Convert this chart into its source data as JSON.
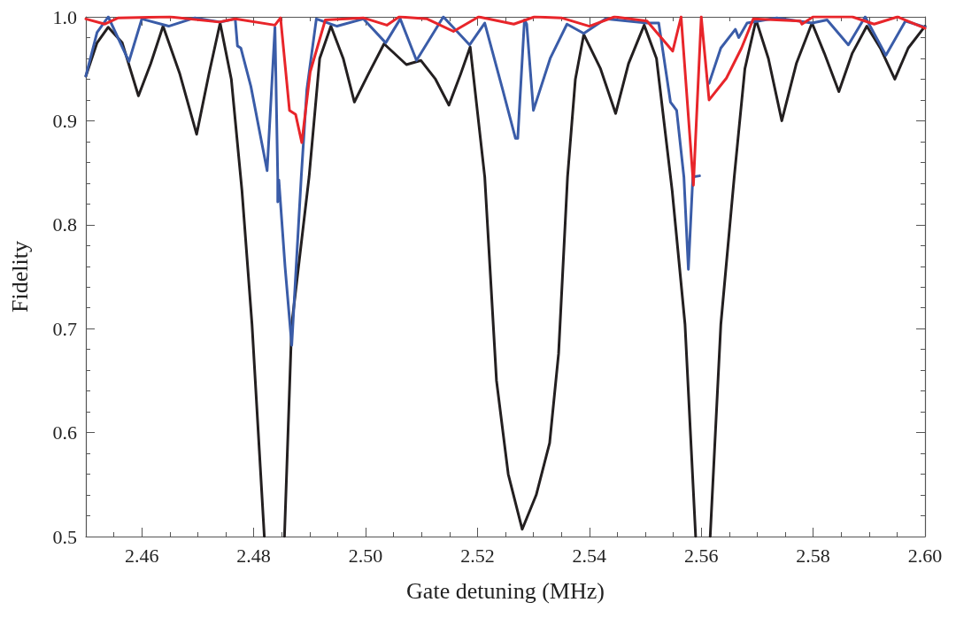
{
  "chart_data": {
    "type": "line",
    "xlabel": "Gate detuning (MHz)",
    "ylabel": "Fidelity",
    "xlim": [
      2.45,
      2.6
    ],
    "ylim": [
      0.5,
      1.0
    ],
    "xticks": [
      {
        "value": 2.455,
        "label": null
      },
      2.46,
      {
        "value": 2.465,
        "label": null
      },
      {
        "value": 2.47,
        "label": null
      },
      {
        "value": 2.475,
        "label": null
      },
      2.48,
      {
        "value": 2.485,
        "label": null
      },
      {
        "value": 2.49,
        "label": null
      },
      {
        "value": 2.495,
        "label": null
      },
      {
        "value": 2.5,
        "label": "2.50"
      },
      {
        "value": 2.505,
        "label": null
      },
      {
        "value": 2.51,
        "label": null
      },
      {
        "value": 2.515,
        "label": null
      },
      2.52,
      {
        "value": 2.525,
        "label": null
      },
      {
        "value": 2.53,
        "label": null
      },
      {
        "value": 2.535,
        "label": null
      },
      2.54,
      {
        "value": 2.545,
        "label": null
      },
      {
        "value": 2.55,
        "label": null
      },
      {
        "value": 2.555,
        "label": null
      },
      2.56,
      {
        "value": 2.565,
        "label": null
      },
      {
        "value": 2.57,
        "label": null
      },
      {
        "value": 2.575,
        "label": null
      },
      2.58,
      {
        "value": 2.585,
        "label": null
      },
      {
        "value": 2.59,
        "label": null
      },
      {
        "value": 2.595,
        "label": null
      },
      {
        "value": 2.6,
        "label": "2.60"
      }
    ],
    "yticks": [
      0.5,
      {
        "value": 0.52,
        "label": null
      },
      {
        "value": 0.54,
        "label": null
      },
      {
        "value": 0.56,
        "label": null
      },
      {
        "value": 0.58,
        "label": null
      },
      0.6,
      {
        "value": 0.62,
        "label": null
      },
      {
        "value": 0.64,
        "label": null
      },
      {
        "value": 0.66,
        "label": null
      },
      {
        "value": 0.68,
        "label": null
      },
      0.7,
      {
        "value": 0.72,
        "label": null
      },
      {
        "value": 0.74,
        "label": null
      },
      {
        "value": 0.76,
        "label": null
      },
      {
        "value": 0.78,
        "label": null
      },
      0.8,
      {
        "value": 0.82,
        "label": null
      },
      {
        "value": 0.84,
        "label": null
      },
      {
        "value": 0.86,
        "label": null
      },
      {
        "value": 0.88,
        "label": null
      },
      0.9,
      {
        "value": 0.92,
        "label": null
      },
      {
        "value": 0.94,
        "label": null
      },
      {
        "value": 0.96,
        "label": null
      },
      {
        "value": 0.98,
        "label": null
      },
      {
        "value": 1.0,
        "label": "1.0"
      }
    ],
    "marker": "none",
    "line_style": "solid",
    "series": [
      {
        "color": "#231f20",
        "x": [
          2.45,
          2.452,
          2.454,
          2.4565,
          2.4594,
          2.4616,
          2.4638,
          2.4668,
          2.4698,
          2.472,
          2.474,
          2.476,
          2.4779,
          2.4797,
          2.4819,
          2.4837,
          2.4855,
          2.4868,
          2.4899,
          2.4918,
          2.4938,
          2.496,
          2.498,
          2.5005,
          2.5033,
          2.5073,
          2.5099,
          2.5125,
          2.5149,
          2.517,
          2.5187,
          2.5213,
          2.5234,
          2.5255,
          2.528,
          2.5305,
          2.5329,
          2.5345,
          2.5361,
          2.5375,
          2.539,
          2.542,
          2.5447,
          2.547,
          2.5498,
          2.552,
          2.5548,
          2.5571,
          2.559,
          2.5603,
          2.5616,
          2.5635,
          2.5659,
          2.5678,
          2.5698,
          2.572,
          2.5744,
          2.577,
          2.5798,
          2.582,
          2.5846,
          2.587,
          2.5896,
          2.592,
          2.5946,
          2.597,
          2.6
        ],
        "values": [
          0.943,
          0.975,
          0.99,
          0.975,
          0.924,
          0.955,
          0.991,
          0.945,
          0.887,
          0.945,
          0.994,
          0.94,
          0.833,
          0.704,
          0.5,
          null,
          0.5,
          0.704,
          0.846,
          0.96,
          0.991,
          0.96,
          0.918,
          0.945,
          0.974,
          0.954,
          0.958,
          0.94,
          0.915,
          0.945,
          0.971,
          0.846,
          0.65,
          0.56,
          0.507,
          0.54,
          0.59,
          0.676,
          0.846,
          0.94,
          0.983,
          0.95,
          0.907,
          0.955,
          0.992,
          0.96,
          0.833,
          0.704,
          0.5,
          null,
          0.5,
          0.704,
          0.846,
          0.95,
          0.997,
          0.96,
          0.9,
          0.955,
          0.994,
          0.965,
          0.928,
          0.965,
          0.991,
          0.97,
          0.94,
          0.97,
          0.991
        ]
      },
      {
        "color": "#3a5ca8",
        "x": [
          2.45,
          2.452,
          2.454,
          2.4577,
          2.46,
          2.4648,
          2.4695,
          2.474,
          2.4767,
          2.4771,
          2.4777,
          2.4795,
          2.4824,
          2.4838,
          2.4843,
          2.4843,
          2.4845,
          2.4856,
          2.4868,
          2.4877,
          2.4885,
          2.4895,
          2.4912,
          2.4949,
          2.4996,
          2.5036,
          2.5062,
          2.5091,
          2.5139,
          2.5186,
          2.5213,
          2.5245,
          2.5268,
          2.5272,
          2.5284,
          2.5288,
          2.53,
          2.533,
          2.536,
          2.539,
          2.5429,
          2.5503,
          2.5524,
          2.5545,
          2.5556,
          2.5569,
          2.5577,
          2.5585,
          2.5597,
          2.56,
          2.5614,
          2.5635,
          2.5661,
          2.5667,
          2.5682,
          2.5735,
          2.5798,
          2.5825,
          2.5863,
          2.5893,
          2.593,
          2.5965,
          2.6
        ],
        "values": [
          0.943,
          0.985,
          1.0,
          0.957,
          0.998,
          0.991,
          0.999,
          0.995,
          0.998,
          0.972,
          0.97,
          0.933,
          0.852,
          0.99,
          0.846,
          0.822,
          0.843,
          0.76,
          0.684,
          0.77,
          0.846,
          0.93,
          0.998,
          0.991,
          0.998,
          0.975,
          0.998,
          0.958,
          1.0,
          0.973,
          0.994,
          0.93,
          0.883,
          0.883,
          0.997,
          0.993,
          0.91,
          0.96,
          0.993,
          0.984,
          0.998,
          0.994,
          0.994,
          0.918,
          0.91,
          0.846,
          0.757,
          0.846,
          0.847,
          null,
          0.936,
          0.97,
          0.988,
          0.98,
          0.994,
          0.999,
          0.994,
          0.997,
          0.973,
          1.0,
          0.963,
          0.996,
          0.99
        ]
      },
      {
        "color": "#e8252a",
        "x": [
          2.45,
          2.4534,
          2.4558,
          2.465,
          2.4738,
          2.4767,
          2.4838,
          2.4848,
          2.4864,
          2.4875,
          2.4886,
          2.4901,
          2.4928,
          2.4996,
          2.5038,
          2.506,
          2.511,
          2.5157,
          2.5202,
          2.5265,
          2.5302,
          2.535,
          2.54,
          2.5445,
          2.5503,
          2.5549,
          2.5564,
          2.5586,
          2.56,
          2.5614,
          2.5645,
          2.5672,
          2.5693,
          2.5777,
          2.578,
          2.58,
          2.587,
          2.5909,
          2.5951,
          2.6
        ],
        "values": [
          0.998,
          0.993,
          0.999,
          1.0,
          0.995,
          0.998,
          0.992,
          0.999,
          0.91,
          0.906,
          0.879,
          0.947,
          0.997,
          0.999,
          0.992,
          1.0,
          0.998,
          0.986,
          1.0,
          0.993,
          1.0,
          0.999,
          0.991,
          1.0,
          0.996,
          0.967,
          1.0,
          0.838,
          1.0,
          0.92,
          0.941,
          0.97,
          0.998,
          0.996,
          0.993,
          1.0,
          1.0,
          0.993,
          1.0,
          0.989
        ]
      }
    ]
  }
}
